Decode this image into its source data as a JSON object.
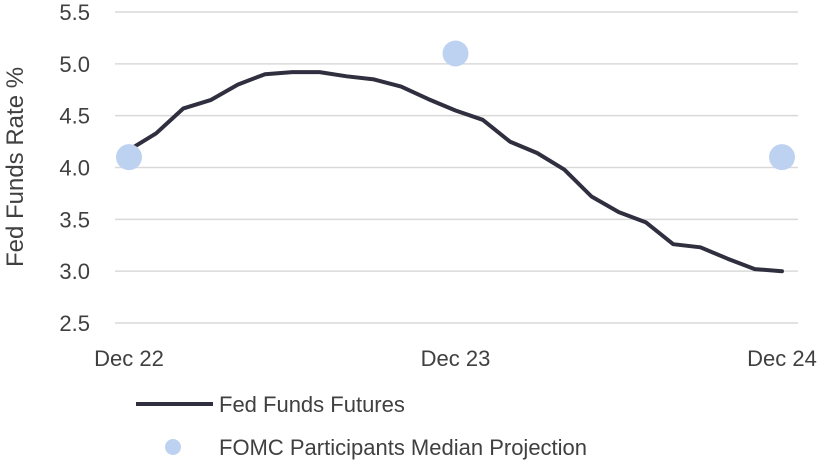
{
  "chart_data": {
    "type": "line",
    "title": "",
    "xlabel": "",
    "ylabel": "Fed Funds Rate %",
    "ylim": [
      2.5,
      5.5
    ],
    "yticks": [
      "2.5",
      "3.0",
      "3.5",
      "4.0",
      "4.5",
      "5.0",
      "5.5"
    ],
    "xlim": [
      0,
      24
    ],
    "xticks": [
      {
        "x": 0,
        "label": "Dec 22"
      },
      {
        "x": 12,
        "label": "Dec 23"
      },
      {
        "x": 24,
        "label": "Dec 24"
      }
    ],
    "grid": true,
    "legend_position": "bottom-left",
    "series": [
      {
        "name": "Fed Funds Futures",
        "kind": "line",
        "color": "#2f2f3f",
        "x": [
          0,
          1,
          2,
          3,
          4,
          5,
          6,
          7,
          8,
          9,
          10,
          11,
          12,
          13,
          14,
          15,
          16,
          17,
          18,
          19,
          20,
          21,
          22,
          23,
          24
        ],
        "y": [
          4.17,
          4.33,
          4.57,
          4.65,
          4.8,
          4.9,
          4.92,
          4.92,
          4.88,
          4.85,
          4.78,
          4.66,
          4.55,
          4.46,
          4.25,
          4.14,
          3.98,
          3.72,
          3.57,
          3.47,
          3.26,
          3.23,
          3.12,
          3.02,
          3.0
        ]
      },
      {
        "name": "FOMC Participants Median Projection",
        "kind": "scatter",
        "color": "#bdd2f0",
        "x": [
          0,
          12,
          24
        ],
        "y": [
          4.1,
          5.1,
          4.1
        ]
      }
    ]
  }
}
